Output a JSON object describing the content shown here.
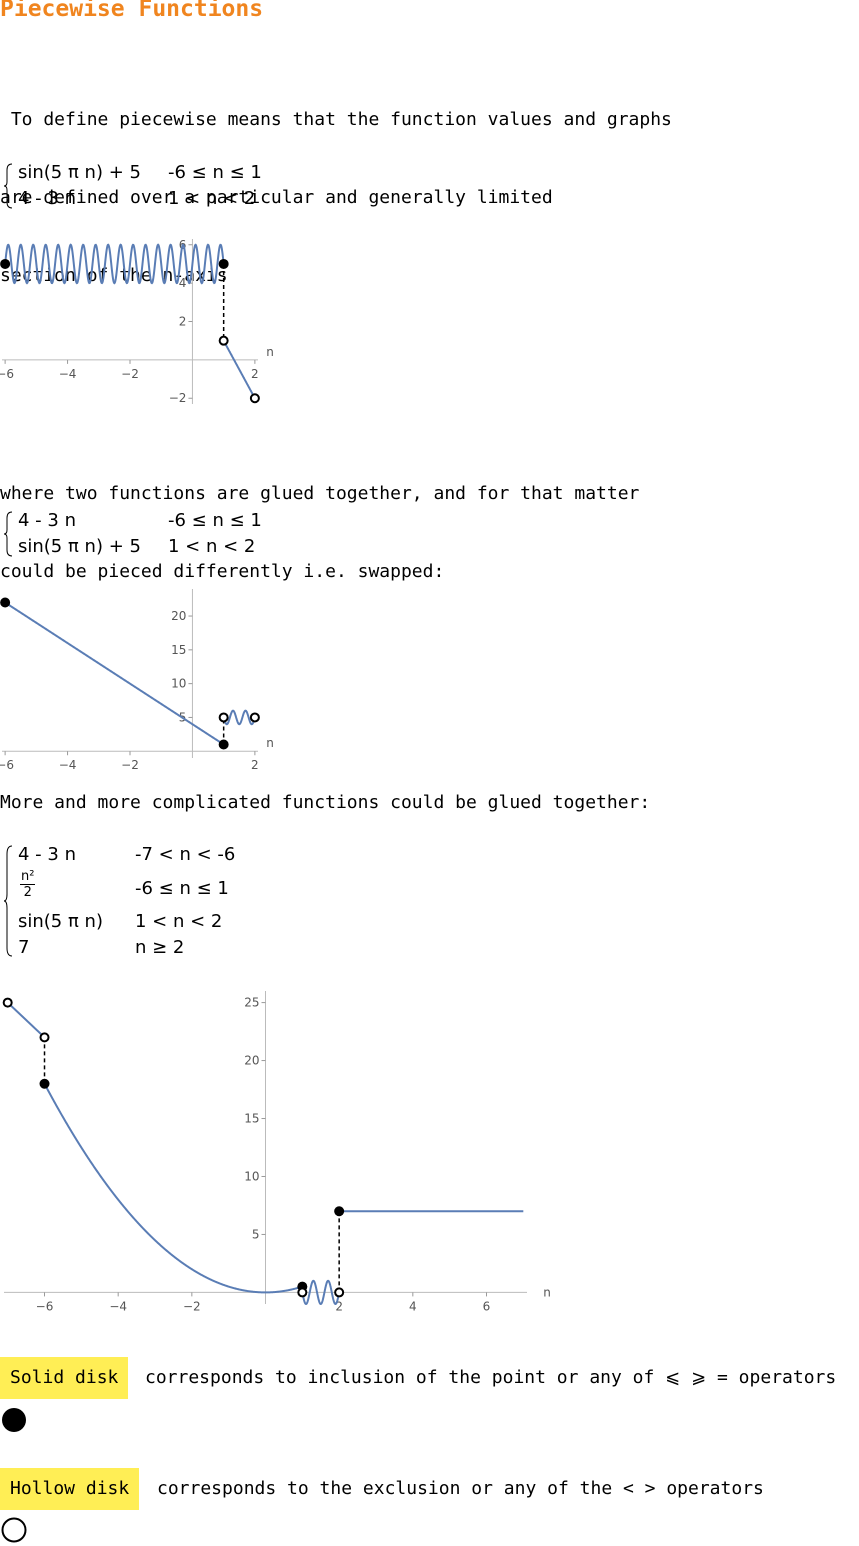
{
  "title": "Piecewise Functions",
  "intro_lines": [
    " To define piecewise means that the function values and graphs",
    "are defined over a particular and generally limited",
    "section of the n-axis"
  ],
  "piecewise1": {
    "rows": [
      {
        "expr": "sin(5 π n) + 5",
        "cond": "-6 ≤ n ≤ 1"
      },
      {
        "expr": "4 - 3 n",
        "cond": "1 < n < 2"
      }
    ]
  },
  "glued_lines": [
    "where two functions are glued together, and for that matter",
    "could be pieced differently i.e. swapped:"
  ],
  "piecewise2": {
    "rows": [
      {
        "expr": "4 - 3 n",
        "cond": "-6 ≤ n ≤ 1"
      },
      {
        "expr": "sin(5 π n) + 5",
        "cond": "1 < n < 2"
      }
    ]
  },
  "complicated_line": "More and more complicated functions could be glued together:",
  "piecewise3": {
    "rows": [
      {
        "expr": "4 - 3 n",
        "cond": "-7 < n < -6"
      },
      {
        "expr_num": "n²",
        "expr_den": "2",
        "cond": "-6 ≤ n ≤ 1"
      },
      {
        "expr": "sin(5 π n)",
        "cond": "1 < n < 2"
      },
      {
        "expr": "7",
        "cond": "n ≥ 2"
      }
    ]
  },
  "chart_data": [
    {
      "type": "line",
      "xlabel": "n",
      "x_ticks": [
        "-6",
        "-4",
        "-2",
        "2"
      ],
      "y_ticks": [
        "-2",
        "2",
        "4",
        "6"
      ],
      "xlim": [
        -6.1,
        2.1
      ],
      "ylim": [
        -2.3,
        6.3
      ],
      "pieces": [
        {
          "expr": "sin(5πn)+5",
          "domain": [
            -6,
            1
          ]
        },
        {
          "expr": "4-3n",
          "domain": [
            1,
            2
          ]
        }
      ],
      "solid_points": [
        [
          -6,
          5
        ],
        [
          1,
          5
        ]
      ],
      "hollow_points": [
        [
          1,
          1
        ],
        [
          2,
          -2
        ]
      ],
      "jumps": [
        [
          1,
          5,
          1
        ]
      ]
    },
    {
      "type": "line",
      "xlabel": "n",
      "x_ticks": [
        "-6",
        "-4",
        "-2",
        "2"
      ],
      "y_ticks": [
        "5",
        "10",
        "15",
        "20"
      ],
      "xlim": [
        -6.1,
        2.1
      ],
      "ylim": [
        -1,
        24
      ],
      "pieces": [
        {
          "expr": "4-3n",
          "domain": [
            -6,
            1
          ]
        },
        {
          "expr": "sin(5πn)+5",
          "domain": [
            1,
            2
          ]
        }
      ],
      "solid_points": [
        [
          -6,
          22
        ],
        [
          1,
          1
        ]
      ],
      "hollow_points": [
        [
          1,
          5
        ],
        [
          2,
          5
        ]
      ],
      "jumps": [
        [
          1,
          1,
          5
        ]
      ]
    },
    {
      "type": "line",
      "xlabel": "n",
      "x_ticks": [
        "-6",
        "-4",
        "-2",
        "2",
        "4",
        "6"
      ],
      "y_ticks": [
        "5",
        "10",
        "15",
        "20",
        "25"
      ],
      "xlim": [
        -7.1,
        7.1
      ],
      "ylim": [
        -1,
        26
      ],
      "pieces": [
        {
          "expr": "4-3n",
          "domain": [
            -7,
            -6
          ]
        },
        {
          "expr": "n^2/2",
          "domain": [
            -6,
            1
          ]
        },
        {
          "expr": "sin(5πn)",
          "domain": [
            1,
            2
          ]
        },
        {
          "expr": "7",
          "domain": [
            2,
            7
          ]
        }
      ],
      "solid_points": [
        [
          -6,
          18
        ],
        [
          1,
          0.5
        ],
        [
          2,
          7
        ]
      ],
      "hollow_points": [
        [
          -7,
          25
        ],
        [
          -6,
          22
        ],
        [
          1,
          0
        ],
        [
          2,
          0
        ]
      ],
      "jumps": [
        [
          -6,
          22,
          18
        ],
        [
          2,
          0,
          7
        ]
      ]
    }
  ],
  "legend": {
    "solid_label": "Solid disk",
    "solid_text": "corresponds to inclusion of the point or any of ⩽ ⩾ = operators",
    "hollow_label": "Hollow disk",
    "hollow_text": "corresponds to the exclusion or any of the < > operators"
  },
  "colors": {
    "title": "#F0851F",
    "curve": "#5A7DB5",
    "badge": "#FFEE55"
  }
}
